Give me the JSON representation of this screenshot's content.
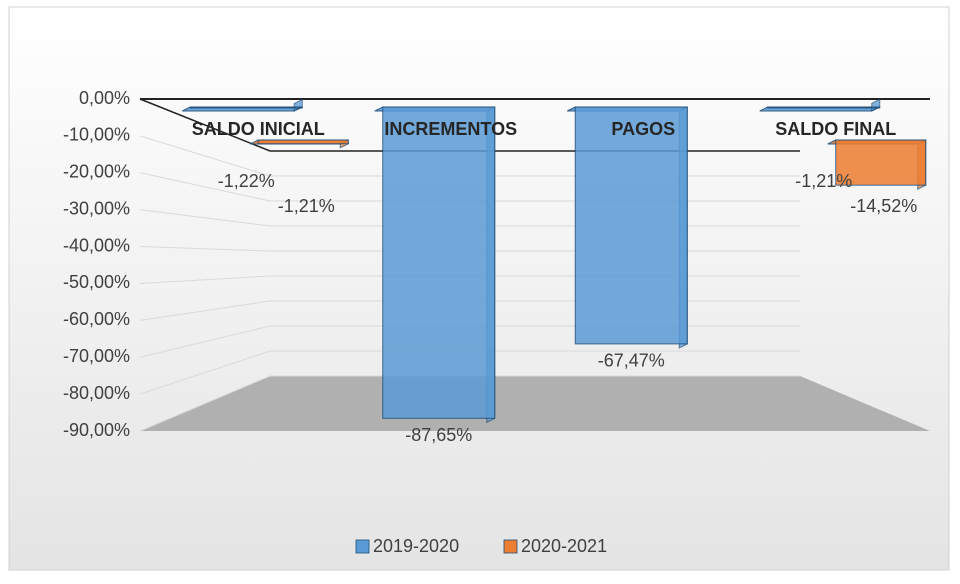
{
  "chart_data": {
    "type": "bar3d",
    "categories": [
      "SALDO INICIAL",
      "INCREMENTOS",
      "PAGOS",
      "SALDO FINAL"
    ],
    "series": [
      {
        "name": "2019-2020",
        "color": "#5b9bd5",
        "values": [
          -1.22,
          -87.65,
          -67.47,
          -1.21
        ],
        "value_labels": [
          "-1,22%",
          "-87,65%",
          "-67,47%",
          "-1,21%"
        ]
      },
      {
        "name": "2020-2021",
        "color": "#ed7d31",
        "values": [
          -1.21,
          null,
          null,
          -14.52
        ],
        "value_labels": [
          "-1,21%",
          null,
          null,
          "-14,52%"
        ]
      }
    ],
    "ylim": [
      -90,
      0
    ],
    "yticks": [
      {
        "value": 0,
        "label": "0,00%"
      },
      {
        "value": -10,
        "label": "-10,00%"
      },
      {
        "value": -20,
        "label": "-20,00%"
      },
      {
        "value": -30,
        "label": "-30,00%"
      },
      {
        "value": -40,
        "label": "-40,00%"
      },
      {
        "value": -50,
        "label": "-50,00%"
      },
      {
        "value": -60,
        "label": "-60,00%"
      },
      {
        "value": -70,
        "label": "-70,00%"
      },
      {
        "value": -80,
        "label": "-80,00%"
      },
      {
        "value": -90,
        "label": "-90,00%"
      }
    ],
    "grid": true,
    "legend": "bottom"
  }
}
